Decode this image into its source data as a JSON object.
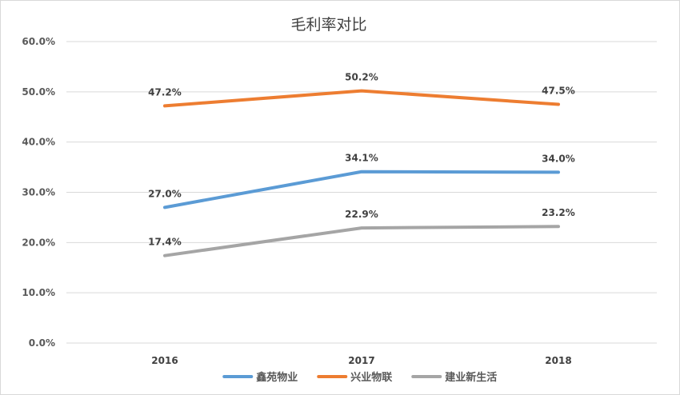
{
  "chart_data": {
    "type": "line",
    "title": "毛利率对比",
    "xlabel": "",
    "ylabel": "",
    "categories": [
      "2016",
      "2017",
      "2018"
    ],
    "ylim": [
      0,
      60
    ],
    "yticks": [
      "0.0%",
      "10.0%",
      "20.0%",
      "30.0%",
      "40.0%",
      "50.0%",
      "60.0%"
    ],
    "grid": true,
    "legend_position": "bottom",
    "series": [
      {
        "name": "鑫苑物业",
        "color": "#5b9bd5",
        "values": [
          27.0,
          34.1,
          34.0
        ],
        "labels": [
          "27.0%",
          "34.1%",
          "34.0%"
        ]
      },
      {
        "name": "兴业物联",
        "color": "#ed7d31",
        "values": [
          47.2,
          50.2,
          47.5
        ],
        "labels": [
          "47.2%",
          "50.2%",
          "47.5%"
        ]
      },
      {
        "name": "建业新生活",
        "color": "#a5a5a5",
        "values": [
          17.4,
          22.9,
          23.2
        ],
        "labels": [
          "17.4%",
          "22.9%",
          "23.2%"
        ]
      }
    ]
  }
}
